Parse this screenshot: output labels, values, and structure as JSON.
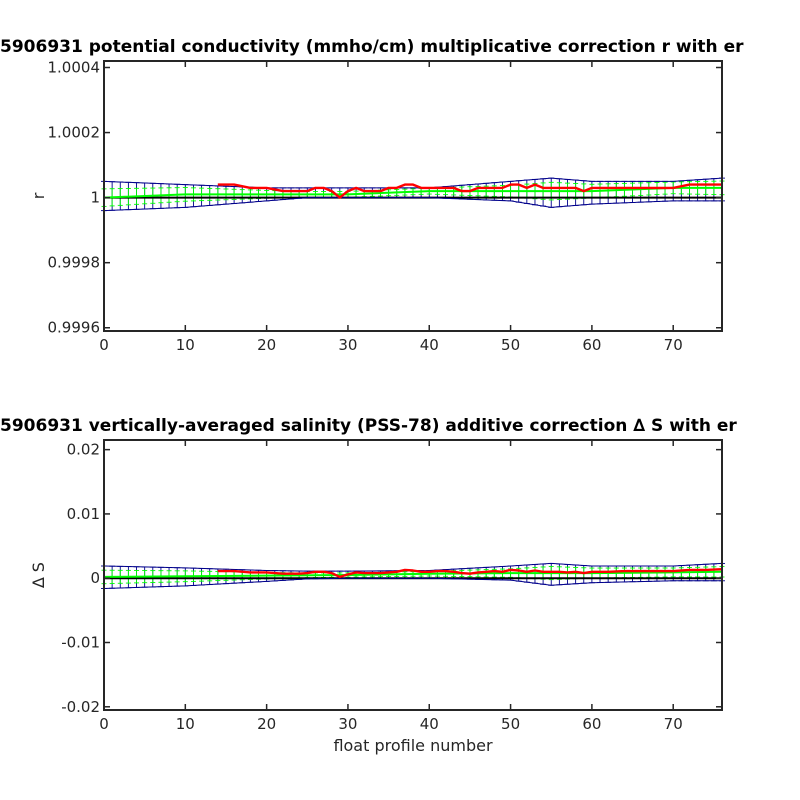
{
  "chart_data": [
    {
      "type": "line",
      "title": "5906931 potential conductivity (mmho/cm) multiplicative correction r with er",
      "xlabel": "",
      "ylabel": "r",
      "xlim": [
        0,
        76
      ],
      "ylim": [
        0.99959,
        1.00042
      ],
      "x_ticks": [
        0,
        10,
        20,
        30,
        40,
        50,
        60,
        70
      ],
      "y_ticks": [
        0.9996,
        0.9998,
        1,
        1.0002,
        1.0004
      ],
      "y_tick_labels": [
        "0.9996",
        "0.9998",
        "1",
        "1.0002",
        "1.0004"
      ],
      "grid": false,
      "reference": 1,
      "colors": {
        "reference": "#000000",
        "uncertainty": "#00008b",
        "fit": "#00ff00",
        "profile": "#ff0000"
      },
      "series": [
        {
          "x": [
            0,
            10,
            20,
            30,
            40,
            50,
            60,
            70,
            76
          ],
          "values": [
            1.0,
            1.0,
            1.0,
            1.0,
            1.0,
            1.0,
            1.0,
            1.0,
            1.0
          ]
        },
        {
          "x": [
            0,
            10,
            20,
            25,
            30,
            40,
            50,
            55,
            60,
            70,
            76
          ],
          "values": [
            1.00005,
            1.00004,
            1.00003,
            1.00003,
            1.00003,
            1.00003,
            1.00005,
            1.00006,
            1.00005,
            1.00005,
            1.00006
          ]
        },
        {
          "x": [
            0,
            10,
            20,
            25,
            30,
            40,
            50,
            55,
            60,
            70,
            76
          ],
          "values": [
            0.99996,
            0.99997,
            0.99999,
            1.0,
            1.0,
            1.0,
            0.99999,
            0.99997,
            0.99998,
            0.99999,
            0.99999
          ]
        },
        {
          "x": [
            0,
            10,
            20,
            30,
            40,
            50,
            60,
            70,
            76
          ],
          "values": [
            1.0,
            1.00001,
            1.00001,
            1.00001,
            1.00002,
            1.00002,
            1.00002,
            1.00003,
            1.00003
          ]
        },
        {
          "x": [
            14,
            16,
            18,
            20,
            22,
            24,
            25,
            26,
            27,
            28,
            29,
            30,
            31,
            32,
            33,
            34,
            35,
            36,
            37,
            38,
            39,
            40,
            41,
            42,
            43,
            44,
            45,
            46,
            47,
            48,
            49,
            50,
            51,
            52,
            53,
            54,
            55,
            56,
            57,
            58,
            59,
            60,
            62,
            64,
            66,
            68,
            70,
            72,
            74,
            76
          ],
          "values": [
            1.00004,
            1.00004,
            1.00003,
            1.00003,
            1.00002,
            1.00002,
            1.00002,
            1.00003,
            1.00003,
            1.00002,
            1.0,
            1.00002,
            1.00003,
            1.00002,
            1.00002,
            1.00002,
            1.00003,
            1.00003,
            1.00004,
            1.00004,
            1.00003,
            1.00003,
            1.00003,
            1.00003,
            1.00003,
            1.00002,
            1.00002,
            1.00003,
            1.00003,
            1.00003,
            1.00003,
            1.00004,
            1.00004,
            1.00003,
            1.00004,
            1.00003,
            1.00003,
            1.00003,
            1.00003,
            1.00003,
            1.00002,
            1.00003,
            1.00003,
            1.00003,
            1.00003,
            1.00003,
            1.00003,
            1.00004,
            1.00004,
            1.00004
          ]
        }
      ]
    },
    {
      "type": "line",
      "title": "5906931 vertically-averaged salinity (PSS-78) additive correction ∆ S with er",
      "xlabel": "float profile number",
      "ylabel": "∆ S",
      "xlim": [
        0,
        76
      ],
      "ylim": [
        -0.0205,
        0.0215
      ],
      "x_ticks": [
        0,
        10,
        20,
        30,
        40,
        50,
        60,
        70
      ],
      "y_ticks": [
        -0.02,
        -0.01,
        0,
        0.01,
        0.02
      ],
      "y_tick_labels": [
        "-0.02",
        "-0.01",
        "0",
        "0.01",
        "0.02"
      ],
      "grid": false,
      "reference": 0,
      "colors": {
        "reference": "#000000",
        "uncertainty": "#00008b",
        "fit": "#00ff00",
        "profile": "#ff0000"
      },
      "series": [
        {
          "x": [
            0,
            10,
            20,
            30,
            40,
            50,
            60,
            70,
            76
          ],
          "values": [
            0,
            0,
            0,
            0,
            0,
            0,
            0,
            0,
            0
          ]
        },
        {
          "x": [
            0,
            10,
            20,
            25,
            30,
            40,
            50,
            55,
            60,
            70,
            76
          ],
          "values": [
            0.0019,
            0.0016,
            0.0012,
            0.0011,
            0.0011,
            0.0012,
            0.0019,
            0.0023,
            0.0019,
            0.0019,
            0.0023
          ]
        },
        {
          "x": [
            0,
            10,
            20,
            25,
            30,
            40,
            50,
            55,
            60,
            70,
            76
          ],
          "values": [
            -0.0016,
            -0.0012,
            -0.0005,
            -0.0001,
            0.0,
            0.0,
            -0.0003,
            -0.0011,
            -0.0007,
            -0.0004,
            -0.0004
          ]
        },
        {
          "x": [
            0,
            10,
            20,
            30,
            40,
            50,
            60,
            70,
            76
          ],
          "values": [
            0.0002,
            0.0003,
            0.0004,
            0.0005,
            0.0007,
            0.0008,
            0.0008,
            0.0009,
            0.001
          ]
        },
        {
          "x": [
            14,
            16,
            18,
            20,
            22,
            24,
            25,
            26,
            27,
            28,
            29,
            30,
            31,
            32,
            33,
            34,
            35,
            36,
            37,
            38,
            39,
            40,
            41,
            42,
            43,
            44,
            45,
            46,
            47,
            48,
            49,
            50,
            51,
            52,
            53,
            54,
            55,
            56,
            57,
            58,
            59,
            60,
            62,
            64,
            66,
            68,
            70,
            72,
            74,
            76
          ],
          "values": [
            0.0011,
            0.0011,
            0.0009,
            0.0009,
            0.0007,
            0.0007,
            0.0008,
            0.001,
            0.001,
            0.0008,
            0.0002,
            0.0006,
            0.0009,
            0.0008,
            0.0008,
            0.0008,
            0.0009,
            0.001,
            0.0013,
            0.0012,
            0.001,
            0.001,
            0.0011,
            0.0011,
            0.001,
            0.0008,
            0.0007,
            0.0009,
            0.001,
            0.0011,
            0.001,
            0.0013,
            0.0012,
            0.001,
            0.0012,
            0.001,
            0.001,
            0.001,
            0.0009,
            0.001,
            0.0008,
            0.001,
            0.001,
            0.0011,
            0.0011,
            0.0011,
            0.0011,
            0.0013,
            0.0013,
            0.0014
          ]
        }
      ]
    }
  ]
}
